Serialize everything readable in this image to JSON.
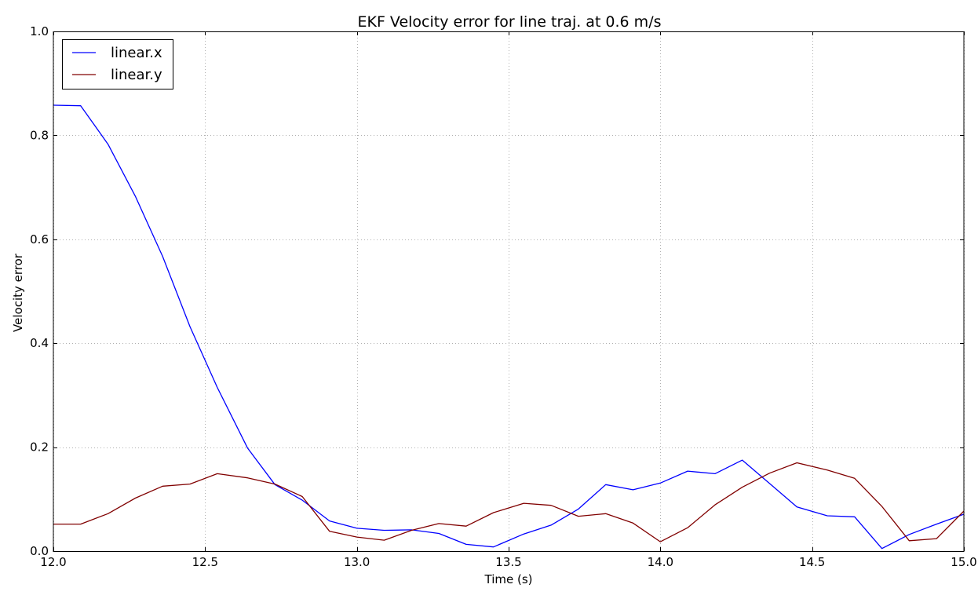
{
  "chart_data": {
    "type": "line",
    "title": "EKF Velocity error for line traj. at 0.6 m/s",
    "xlabel": "Time (s)",
    "ylabel": "Velocity error",
    "xlim": [
      12.0,
      15.0
    ],
    "ylim": [
      0.0,
      1.0
    ],
    "xticks": [
      "12.0",
      "12.5",
      "13.0",
      "13.5",
      "14.0",
      "14.5",
      "15.0"
    ],
    "yticks": [
      "0.0",
      "0.2",
      "0.4",
      "0.6",
      "0.8",
      "1.0"
    ],
    "grid": true,
    "legend_position": "top-left",
    "series": [
      {
        "name": "linear.x",
        "color": "#0000ff",
        "points": [
          [
            12.0,
            0.858
          ],
          [
            12.09,
            0.857
          ],
          [
            12.18,
            0.783
          ],
          [
            12.27,
            0.683
          ],
          [
            12.36,
            0.567
          ],
          [
            12.45,
            0.432
          ],
          [
            12.54,
            0.315
          ],
          [
            12.64,
            0.198
          ],
          [
            12.73,
            0.128
          ],
          [
            12.82,
            0.098
          ],
          [
            12.91,
            0.058
          ],
          [
            13.0,
            0.044
          ],
          [
            13.09,
            0.04
          ],
          [
            13.18,
            0.041
          ],
          [
            13.27,
            0.034
          ],
          [
            13.36,
            0.013
          ],
          [
            13.45,
            0.008
          ],
          [
            13.55,
            0.033
          ],
          [
            13.64,
            0.05
          ],
          [
            13.73,
            0.081
          ],
          [
            13.82,
            0.128
          ],
          [
            13.91,
            0.118
          ],
          [
            14.0,
            0.131
          ],
          [
            14.09,
            0.154
          ],
          [
            14.18,
            0.149
          ],
          [
            14.27,
            0.175
          ],
          [
            14.36,
            0.13
          ],
          [
            14.45,
            0.085
          ],
          [
            14.55,
            0.068
          ],
          [
            14.64,
            0.066
          ],
          [
            14.73,
            0.005
          ],
          [
            14.82,
            0.032
          ],
          [
            14.91,
            0.052
          ],
          [
            15.0,
            0.071
          ]
        ]
      },
      {
        "name": "linear.y",
        "color": "#800000",
        "points": [
          [
            12.0,
            0.052
          ],
          [
            12.09,
            0.052
          ],
          [
            12.18,
            0.072
          ],
          [
            12.27,
            0.102
          ],
          [
            12.36,
            0.125
          ],
          [
            12.45,
            0.129
          ],
          [
            12.54,
            0.149
          ],
          [
            12.64,
            0.141
          ],
          [
            12.73,
            0.129
          ],
          [
            12.82,
            0.105
          ],
          [
            12.91,
            0.038
          ],
          [
            13.0,
            0.027
          ],
          [
            13.09,
            0.021
          ],
          [
            13.18,
            0.04
          ],
          [
            13.27,
            0.053
          ],
          [
            13.36,
            0.048
          ],
          [
            13.45,
            0.074
          ],
          [
            13.55,
            0.092
          ],
          [
            13.64,
            0.088
          ],
          [
            13.73,
            0.067
          ],
          [
            13.82,
            0.072
          ],
          [
            13.91,
            0.054
          ],
          [
            14.0,
            0.018
          ],
          [
            14.09,
            0.045
          ],
          [
            14.18,
            0.089
          ],
          [
            14.27,
            0.123
          ],
          [
            14.36,
            0.15
          ],
          [
            14.45,
            0.17
          ],
          [
            14.55,
            0.156
          ],
          [
            14.64,
            0.14
          ],
          [
            14.73,
            0.086
          ],
          [
            14.82,
            0.02
          ],
          [
            14.91,
            0.024
          ],
          [
            15.0,
            0.077
          ]
        ]
      }
    ]
  }
}
